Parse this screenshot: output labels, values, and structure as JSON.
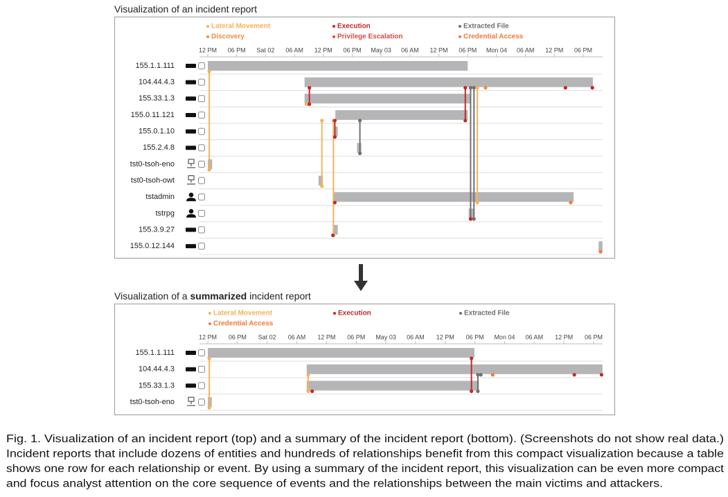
{
  "panels": [
    {
      "title": [
        "Visualization of an incident report"
      ],
      "legend": [
        {
          "name": "Lateral Movement",
          "color": "#f6b25a"
        },
        {
          "name": "Execution",
          "color": "#c0292b"
        },
        {
          "name": "Extracted File",
          "color": "#707070"
        },
        {
          "name": "Discovery",
          "color": "#f28c3a"
        },
        {
          "name": "Privilege Escalation",
          "color": "#e2483d"
        },
        {
          "name": "Credential Access",
          "color": "#f07a3a"
        }
      ],
      "xlim": [
        0,
        78
      ],
      "xticks": [
        {
          "value": 0,
          "label": "12 PM"
        },
        {
          "value": 6,
          "label": "06 PM"
        },
        {
          "value": 12,
          "label": "Sat 02"
        },
        {
          "value": 18,
          "label": "06 AM"
        },
        {
          "value": 24,
          "label": "12 PM"
        },
        {
          "value": 30,
          "label": "06 PM"
        },
        {
          "value": 36,
          "label": "May 03"
        },
        {
          "value": 42,
          "label": "06 AM"
        },
        {
          "value": 48,
          "label": "12 PM"
        },
        {
          "value": 54,
          "label": "06 PM"
        },
        {
          "value": 60,
          "label": "Mon 04"
        },
        {
          "value": 66,
          "label": "06 AM"
        },
        {
          "value": 72,
          "label": "12 PM"
        },
        {
          "value": 78,
          "label": "06 PM"
        }
      ],
      "rows": [
        {
          "label": "155.1.1.111",
          "icon": "ip",
          "bar": [
            0,
            54
          ]
        },
        {
          "label": "104.44.4.3",
          "icon": "ip",
          "bar": [
            20.1,
            80
          ]
        },
        {
          "label": "155.33.1.3",
          "icon": "ip",
          "bar": [
            20.1,
            54.7
          ]
        },
        {
          "label": "155.0.11.121",
          "icon": "ip",
          "bar": [
            26.5,
            54
          ]
        },
        {
          "label": "155.0.1.10",
          "icon": "ip",
          "bar": [
            26.3,
            27
          ]
        },
        {
          "label": "155.2.4.8",
          "icon": "ip",
          "bar": [
            31,
            31.9
          ]
        },
        {
          "label": "tst0-tsoh-eno",
          "icon": "host",
          "bar": [
            0,
            0.9
          ]
        },
        {
          "label": "tst0-tsoh-owt",
          "icon": "host",
          "bar": [
            23,
            23.9
          ]
        },
        {
          "label": "tstadmin",
          "icon": "user",
          "bar": [
            26.1,
            76
          ]
        },
        {
          "label": "tstrpg",
          "icon": "user",
          "bar": [
            54.2,
            55.2
          ]
        },
        {
          "label": "155.3.9.27",
          "icon": "ip",
          "bar": [
            26.1,
            27
          ]
        },
        {
          "label": "155.0.12.144",
          "icon": "ip",
          "bar": [
            81.2,
            82
          ]
        }
      ],
      "events": [
        {
          "type": 0,
          "x": 0.3,
          "rows": [
            0,
            6
          ]
        },
        {
          "type": 0,
          "x": 20.5,
          "rows": [
            2,
            2
          ]
        },
        {
          "type": 1,
          "x": 21.1,
          "rows": [
            1,
            2
          ]
        },
        {
          "type": 0,
          "x": 23.7,
          "rows": [
            3,
            7
          ]
        },
        {
          "type": 0,
          "x": 26.1,
          "rows": [
            3,
            10
          ]
        },
        {
          "type": 1,
          "x": 26.4,
          "rows": [
            3,
            4
          ]
        },
        {
          "type": 2,
          "x": 31.6,
          "rows": [
            3,
            5
          ]
        },
        {
          "type": 1,
          "x": 53.5,
          "rows": [
            1,
            3
          ]
        },
        {
          "type": 2,
          "x": 54.6,
          "rows": [
            1,
            9
          ]
        },
        {
          "type": 2,
          "x": 55.3,
          "rows": [
            1,
            9
          ]
        },
        {
          "type": 0,
          "x": 56,
          "rows": [
            1,
            8
          ]
        },
        {
          "type": 3,
          "x": 57.7,
          "rows": [
            1,
            1
          ]
        },
        {
          "type": 1,
          "x": 74.3,
          "rows": [
            1,
            1
          ]
        },
        {
          "type": 1,
          "x": 79.9,
          "rows": [
            1,
            1
          ]
        },
        {
          "type": 1,
          "x": 26.4,
          "rows": [
            8,
            8
          ]
        },
        {
          "type": 5,
          "x": 75.4,
          "rows": [
            8,
            8
          ]
        },
        {
          "type": 1,
          "x": 54.6,
          "rows": [
            9,
            9
          ]
        },
        {
          "type": 1,
          "x": 26,
          "rows": [
            10,
            10
          ]
        },
        {
          "type": 5,
          "x": 81.6,
          "rows": [
            11,
            11
          ]
        }
      ]
    },
    {
      "title": [
        "Visualization of a ",
        "summarized",
        " incident report"
      ],
      "legend": [
        {
          "name": "Lateral Movement",
          "color": "#f6b25a"
        },
        {
          "name": "Execution",
          "color": "#c0292b"
        },
        {
          "name": "Extracted File",
          "color": "#707070"
        },
        {
          "name": "Credential Access",
          "color": "#f07a3a"
        }
      ],
      "xlim": [
        0,
        78
      ],
      "xticks": [
        {
          "value": 0,
          "label": "12 PM"
        },
        {
          "value": 6,
          "label": "06 PM"
        },
        {
          "value": 12,
          "label": "Sat 02"
        },
        {
          "value": 18,
          "label": "06 AM"
        },
        {
          "value": 24,
          "label": "12 PM"
        },
        {
          "value": 30,
          "label": "06 PM"
        },
        {
          "value": 36,
          "label": "May 03"
        },
        {
          "value": 42,
          "label": "06 AM"
        },
        {
          "value": 48,
          "label": "12 PM"
        },
        {
          "value": 54,
          "label": "06 PM"
        },
        {
          "value": 60,
          "label": "Mon 04"
        },
        {
          "value": 66,
          "label": "06 AM"
        },
        {
          "value": 72,
          "label": "12 PM"
        },
        {
          "value": 78,
          "label": "06 PM"
        }
      ],
      "rows": [
        {
          "label": "155.1.1.111",
          "icon": "ip",
          "bar": [
            0,
            53.9
          ]
        },
        {
          "label": "104.44.4.3",
          "icon": "ip",
          "bar": [
            20,
            79.8
          ]
        },
        {
          "label": "155.33.1.3",
          "icon": "ip",
          "bar": [
            20,
            54.8
          ]
        },
        {
          "label": "tst0-tsoh-eno",
          "icon": "host",
          "bar": [
            0,
            0.8
          ]
        }
      ],
      "events": [
        {
          "type": 0,
          "x": 0.3,
          "rows": [
            0,
            3
          ]
        },
        {
          "type": 0,
          "x": 20.3,
          "rows": [
            1,
            2
          ]
        },
        {
          "type": 1,
          "x": 21.1,
          "rows": [
            2,
            2
          ]
        },
        {
          "type": 1,
          "x": 53.3,
          "rows": [
            0,
            2
          ]
        },
        {
          "type": 2,
          "x": 54.6,
          "rows": [
            1,
            2
          ]
        },
        {
          "type": 2,
          "x": 55.2,
          "rows": [
            1,
            1
          ]
        },
        {
          "type": 3,
          "x": 57.6,
          "rows": [
            1,
            1
          ]
        },
        {
          "type": 1,
          "x": 74.1,
          "rows": [
            1,
            1
          ]
        },
        {
          "type": 1,
          "x": 79.6,
          "rows": [
            1,
            1
          ]
        }
      ]
    }
  ],
  "caption": [
    "Fig. 1. Visualization of an incident report (top) and a summary of the incident report (bottom). (Screenshots do not show real data.)",
    "Incident reports that include dozens of entities and hundreds of relationships benefit from this compact visualization because a table",
    "shows one row for each relationship or event. By using a summary of the incident report, this visualization can be even more compact",
    "and focus analyst attention on the core sequence of events and the relationships between the main victims and attackers."
  ]
}
